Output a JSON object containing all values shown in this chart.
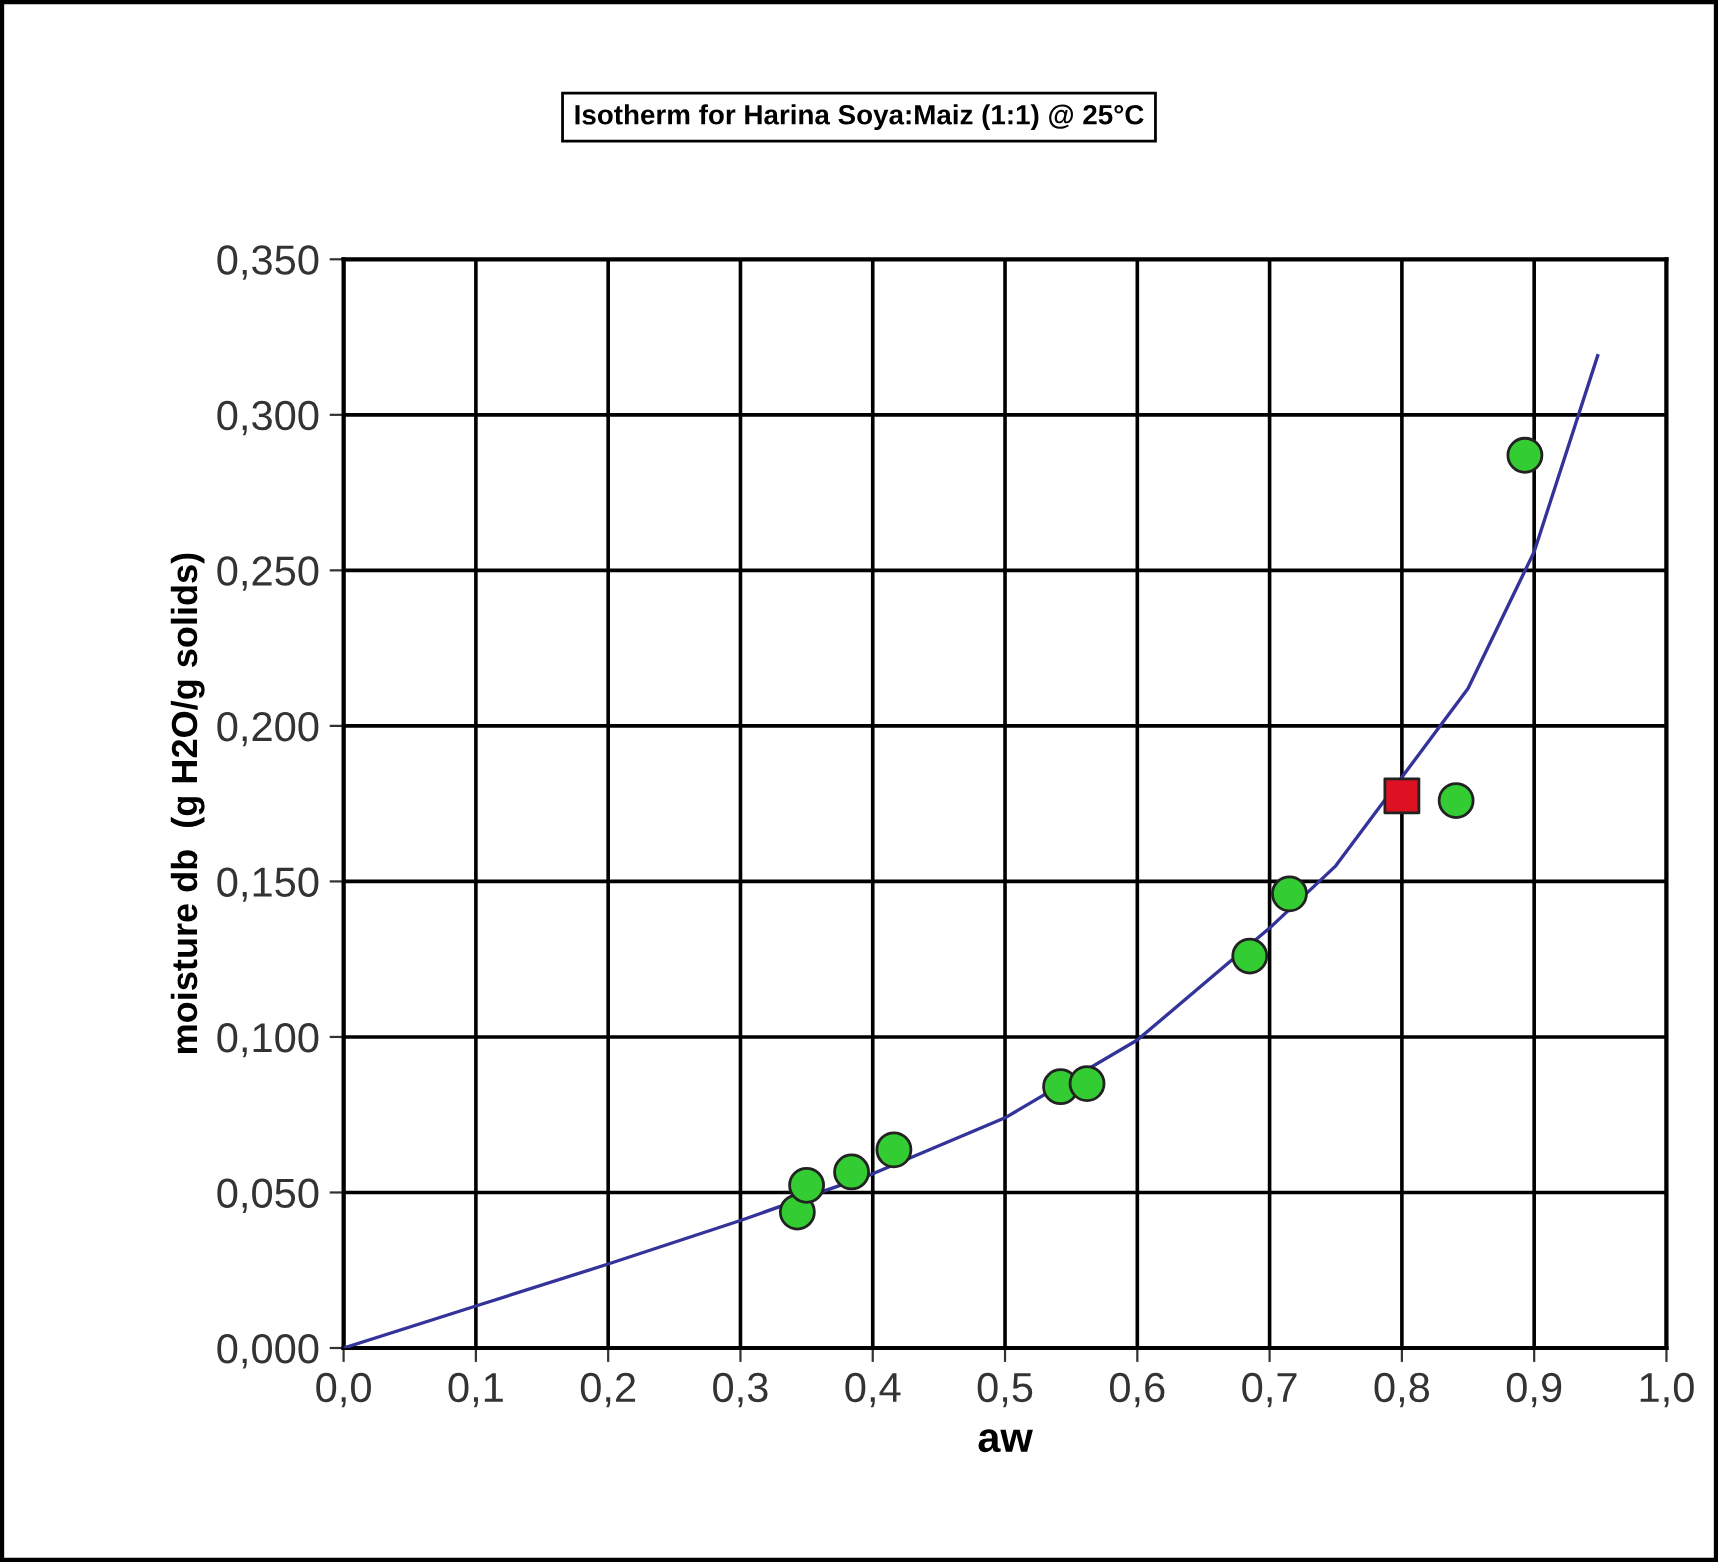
{
  "chart_data": {
    "type": "scatter",
    "title": "Isotherm for Harina Soya:Maiz (1:1) @ 25°C",
    "xlabel": "aw",
    "ylabel": "moisture db  (g H2O/g solids)",
    "series": [
      {
        "type": "line",
        "color": "#333399",
        "marker": "none",
        "x": [
          0.0,
          0.1,
          0.2,
          0.3,
          0.4,
          0.5,
          0.6,
          0.7,
          0.75,
          0.85,
          0.9,
          0.948
        ],
        "values": [
          0.0,
          0.0135,
          0.027,
          0.041,
          0.056,
          0.074,
          0.099,
          0.135,
          0.155,
          0.212,
          0.256,
          0.319
        ]
      },
      {
        "color": "#33cc33",
        "marker": "circle",
        "x": [
          0.343,
          0.35,
          0.384,
          0.416,
          0.542,
          0.562,
          0.685,
          0.715,
          0.841,
          0.893
        ],
        "values": [
          0.0437,
          0.0523,
          0.0566,
          0.0637,
          0.084,
          0.085,
          0.126,
          0.146,
          0.176,
          0.287
        ]
      },
      {
        "color": "#dd1122",
        "marker": "square",
        "x": [
          0.8
        ],
        "values": [
          0.1775
        ]
      }
    ],
    "xlim": [
      0.0,
      1.0
    ],
    "ylim": [
      0.0,
      0.35
    ],
    "xticks": [
      {
        "value": 0.0,
        "label": "0,0"
      },
      {
        "value": 0.1,
        "label": "0,1"
      },
      {
        "value": 0.2,
        "label": "0,2"
      },
      {
        "value": 0.3,
        "label": "0,3"
      },
      {
        "value": 0.4,
        "label": "0,4"
      },
      {
        "value": 0.5,
        "label": "0,5"
      },
      {
        "value": 0.6,
        "label": "0,6"
      },
      {
        "value": 0.7,
        "label": "0,7"
      },
      {
        "value": 0.8,
        "label": "0,8"
      },
      {
        "value": 0.9,
        "label": "0,9"
      },
      {
        "value": 1.0,
        "label": "1,0"
      }
    ],
    "yticks": [
      {
        "value": 0.0,
        "label": "0,000"
      },
      {
        "value": 0.05,
        "label": "0,050"
      },
      {
        "value": 0.1,
        "label": "0,100"
      },
      {
        "value": 0.15,
        "label": "0,150"
      },
      {
        "value": 0.2,
        "label": "0,200"
      },
      {
        "value": 0.25,
        "label": "0,250"
      },
      {
        "value": 0.3,
        "label": "0,300"
      },
      {
        "value": 0.35,
        "label": "0,350"
      }
    ],
    "grid": true
  }
}
